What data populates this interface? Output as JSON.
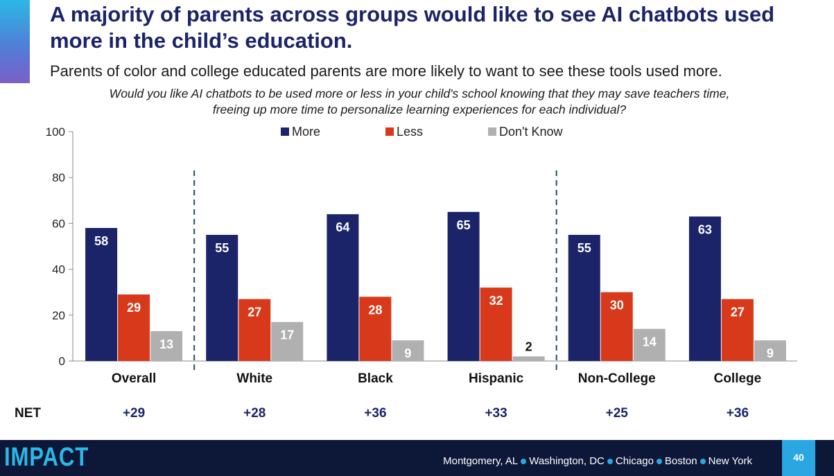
{
  "slide": {
    "title": "A majority of parents across groups would like to see AI chatbots used more in the child’s education.",
    "subtitle": "Parents of color and college educated parents are more likely to want to see these tools used more.",
    "question": "Would you like AI chatbots to be used more or less in your child's school knowing that they may save teachers time, freeing up more time to personalize learning experiences for each individual?"
  },
  "chart_data": {
    "type": "bar",
    "categories": [
      "Overall",
      "White",
      "Black",
      "Hispanic",
      "Non-College",
      "College"
    ],
    "series": [
      {
        "name": "More",
        "values": [
          58,
          55,
          64,
          65,
          55,
          63
        ],
        "color": "#1b2468"
      },
      {
        "name": "Less",
        "values": [
          29,
          27,
          28,
          32,
          30,
          27
        ],
        "color": "#d8391a"
      },
      {
        "name": "Don't Know",
        "values": [
          13,
          17,
          9,
          2,
          14,
          9
        ],
        "color": "#b0b0b0"
      }
    ],
    "ylim": [
      0,
      100
    ],
    "yticks": [
      0,
      20,
      40,
      60,
      80,
      100
    ],
    "legend_position": "top-center",
    "net_label": "NET",
    "net_values": [
      "+29",
      "+28",
      "+36",
      "+33",
      "+25",
      "+36"
    ],
    "group_dividers_after": [
      "Overall",
      "Hispanic"
    ]
  },
  "footer": {
    "logo_text": "IMPACT",
    "cities": [
      "Montgomery, AL",
      "Washington, DC",
      "Chicago",
      "Boston",
      "New York"
    ],
    "page_number": "40"
  }
}
